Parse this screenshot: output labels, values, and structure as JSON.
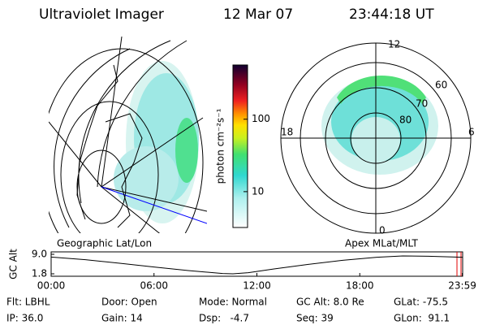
{
  "header": {
    "instrument": "Ultraviolet Imager",
    "date": "12 Mar 07",
    "time": "23:44:18 UT"
  },
  "left_panel": {
    "label": "Geographic Lat/Lon"
  },
  "right_panel": {
    "label": "Apex MLat/MLT",
    "mlt_labels": [
      "12",
      "18",
      "6",
      "0"
    ],
    "lat_labels": [
      "60",
      "70",
      "80"
    ]
  },
  "colorbar": {
    "label": "photon cm⁻²s⁻¹",
    "scale": "log",
    "lim": [
      3.2,
      560
    ],
    "ticks": [
      10,
      100
    ]
  },
  "altitude_plot": {
    "ylabel": "GC Alt",
    "ylim": [
      1.8,
      9.0
    ],
    "yticks": [
      {
        "value": 9.0,
        "label": "9.0"
      },
      1.8
    ],
    "xlim": [
      0,
      24
    ],
    "xticks": [
      {
        "value": 0,
        "label": "00:00"
      },
      {
        "value": 6,
        "label": "06:00"
      },
      {
        "value": 12,
        "label": "12:00"
      },
      {
        "value": 18,
        "label": "18:00"
      },
      {
        "value": 23.98,
        "label": "23:59"
      }
    ],
    "x": [
      0,
      2,
      4,
      6,
      8,
      10,
      10.6,
      11.5,
      13,
      15,
      17,
      19,
      20.5,
      22,
      23.98
    ],
    "values": [
      8.0,
      7.0,
      5.7,
      4.3,
      3.0,
      1.9,
      1.8,
      2.2,
      3.6,
      5.3,
      6.8,
      7.9,
      8.4,
      8.3,
      7.9
    ]
  },
  "footer": {
    "rows": [
      [
        "Flt: LBHL",
        "Door: Open",
        "Mode: Normal",
        "GC Alt: 8.0 Re",
        "GLat: -75.5"
      ],
      [
        "IP: 36.0",
        "Gain: 14",
        "Dsp:   -4.7",
        "Seq: 39",
        "GLon:  91.1"
      ]
    ]
  }
}
